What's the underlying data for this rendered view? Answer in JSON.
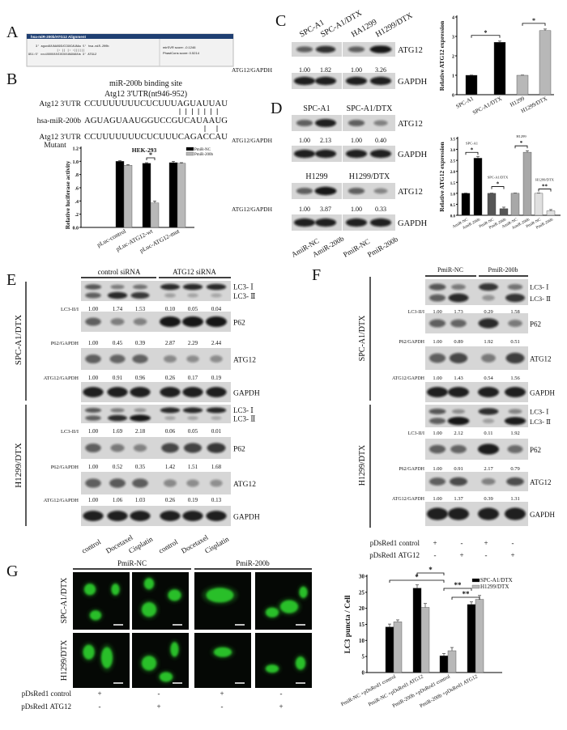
{
  "panel_a": {
    "letter": "A",
    "header": "hsa-miR-200b/ATG12 Alignment",
    "line1": "3'  agucAUUAAUGGUCCGUCAUAAu 5'  hsa-miR-200b",
    "line2": "|: || |:   :||||||",
    "line3": "951:5' ccuUUUUUUUCUCUUUAGUAUUa 3'  ATG12",
    "mirsvr": "mirSVR score:    -0.1246",
    "phastcons": "PhastCons score: 0.5214",
    "header_color": "#1f3f72"
  },
  "panel_b": {
    "letter": "B",
    "title1": "miR-200b binding site",
    "title2": "Atg12 3'UTR(nt946-952)",
    "rows": [
      {
        "label": "Atg12 3'UTR",
        "seq": "CCUUUUUUUCUCUUUAGUAUUAU"
      },
      {
        "label": "hsa-miR-200b",
        "seq": "AGUAGUAAUGGUCCGUCAUAAUG"
      },
      {
        "label": "Atg12 3'UTR",
        "seq": "CCUUUUUUUCUCUUUCAGACCAU"
      }
    ],
    "mutant_label": "Mutant"
  },
  "panel_c": {
    "letter": "C",
    "lanes": [
      "SPC-A1",
      "SPC-A1/DTX",
      "HA1299",
      "H1299/DTX"
    ],
    "rows": [
      {
        "label": "ATG12"
      },
      {
        "label": "ATG12/GAPDH",
        "values": [
          "1.00",
          "1.82",
          "1.00",
          "3.26"
        ]
      },
      {
        "label": "GAPDH"
      }
    ]
  },
  "panel_d": {
    "letter": "D",
    "top": {
      "groups": [
        "SPC-A1",
        "SPC-A1/DTX"
      ],
      "rows": [
        {
          "label": "ATG12"
        },
        {
          "label": "ATG12/GAPDH",
          "values": [
            "1.00",
            "2.13",
            "1.00",
            "0.40"
          ]
        },
        {
          "label": "GAPDH"
        }
      ]
    },
    "bottom": {
      "groups": [
        "H1299",
        "H1299/DTX"
      ],
      "rows": [
        {
          "label": "ATG12"
        },
        {
          "label": "ATG12/GAPDH",
          "values": [
            "1.00",
            "3.87",
            "1.00",
            "0.33"
          ]
        },
        {
          "label": "GAPDH"
        }
      ]
    },
    "lanes": [
      "AmiR-NC",
      "AmiR-200b",
      "PmiR-NC",
      "PmiR-200b"
    ]
  },
  "panel_e": {
    "letter": "E",
    "groups": [
      "control siRNA",
      "ATG12 siRNA"
    ],
    "cell_lines": [
      "SPC-A1/DTX",
      "H1299/DTX"
    ],
    "sections": [
      {
        "rows": [
          {
            "labels": [
              "LC3- Ⅰ",
              "LC3- Ⅱ"
            ]
          },
          {
            "label": "LC3-II/I",
            "values": [
              "1.00",
              "1.74",
              "1.53",
              "0.10",
              "0.05",
              "0.04"
            ]
          },
          {
            "label": "P62"
          },
          {
            "label": "P62/GAPDH",
            "values": [
              "1.00",
              "0.45",
              "0.39",
              "2.87",
              "2.29",
              "2.44"
            ]
          },
          {
            "label": "ATG12"
          },
          {
            "label": "ATG12/GAPDH",
            "values": [
              "1.00",
              "0.91",
              "0.96",
              "0.26",
              "0.17",
              "0.19"
            ]
          },
          {
            "label": "GAPDH"
          }
        ]
      },
      {
        "rows": [
          {
            "labels": [
              "LC3- Ⅰ",
              "LC3- Ⅱ"
            ]
          },
          {
            "label": "LC3-II/I",
            "values": [
              "1.00",
              "1.69",
              "2.18",
              "0.06",
              "0.05",
              "0.01"
            ]
          },
          {
            "label": "P62"
          },
          {
            "label": "P62/GAPDH",
            "values": [
              "1.00",
              "0.52",
              "0.35",
              "1.42",
              "1.51",
              "1.68"
            ]
          },
          {
            "label": "ATG12"
          },
          {
            "label": "ATG12/GAPDH",
            "values": [
              "1.00",
              "1.06",
              "1.03",
              "0.26",
              "0.19",
              "0.13"
            ]
          },
          {
            "label": "GAPDH"
          }
        ]
      }
    ],
    "lanes": [
      "control",
      "Docetaxel",
      "Cisplatin",
      "control",
      "Docetaxel",
      "Cisplatin"
    ]
  },
  "panel_f": {
    "letter": "F",
    "groups": [
      "PmiR-NC",
      "PmiR-200b"
    ],
    "cell_lines": [
      "SPC-A1/DTX",
      "H1299/DTX"
    ],
    "sections": [
      {
        "rows": [
          {
            "labels": [
              "LC3- Ⅰ",
              "LC3- Ⅱ"
            ]
          },
          {
            "label": "LC3-II/I",
            "values": [
              "1.00",
              "1.73",
              "0.29",
              "1.58"
            ]
          },
          {
            "label": "P62"
          },
          {
            "label": "P62/GAPDH",
            "values": [
              "1.00",
              "0.89",
              "1.92",
              "0.51"
            ]
          },
          {
            "label": "ATG12"
          },
          {
            "label": "ATG12/GAPDH",
            "values": [
              "1.00",
              "1.43",
              "0.54",
              "1.56"
            ]
          },
          {
            "label": "GAPDH"
          }
        ]
      },
      {
        "rows": [
          {
            "labels": [
              "LC3- Ⅰ",
              "LC3- Ⅱ"
            ]
          },
          {
            "label": "LC3-II/I",
            "values": [
              "1.00",
              "2.12",
              "0.11",
              "1.92"
            ]
          },
          {
            "label": "P62"
          },
          {
            "label": "P62/GAPDH",
            "values": [
              "1.00",
              "0.91",
              "2.17",
              "0.79"
            ]
          },
          {
            "label": "ATG12"
          },
          {
            "label": "ATG12/GAPDH",
            "values": [
              "1.00",
              "1.37",
              "0.39",
              "1.31"
            ]
          },
          {
            "label": "GAPDH"
          }
        ]
      }
    ],
    "treatments": [
      {
        "label": "pDsRed1 control",
        "marks": [
          "+",
          "-",
          "+",
          "-"
        ]
      },
      {
        "label": "pDsRed1 ATG12",
        "marks": [
          "-",
          "+",
          "-",
          "+"
        ]
      }
    ]
  },
  "panel_g": {
    "letter": "G",
    "groups": [
      "PmiR-NC",
      "PmiR-200b"
    ],
    "cell_lines": [
      "SPC-A1/DTX",
      "H1299/DTX"
    ],
    "image_color": "#2fd62f",
    "treatments": [
      {
        "label": "pDsRed1 control",
        "marks": [
          "+",
          "-",
          "+",
          "-"
        ]
      },
      {
        "label": "pDsRed1 ATG12",
        "marks": [
          "-",
          "+",
          "-",
          "+"
        ]
      }
    ]
  },
  "chart_data": [
    {
      "id": "B",
      "type": "bar",
      "title": "HEK-293",
      "ylabel": "Relative luciferase activity",
      "ylim": [
        0,
        1.2
      ],
      "yticks": [
        [
          0,
          "0.0"
        ],
        [
          0.2,
          ".2"
        ],
        [
          0.4,
          ".4"
        ],
        [
          0.6,
          ".6"
        ],
        [
          0.8,
          ".8"
        ],
        [
          1.0,
          "1.0"
        ],
        [
          1.2,
          "1.2"
        ]
      ],
      "categories": [
        "pLuc-control",
        "pLuc-ATG12-wt",
        "pLuc-ATG12-mut"
      ],
      "series": [
        {
          "name": "PmiR-NC",
          "color": "#000000",
          "values": [
            1.0,
            0.97,
            0.98
          ],
          "errors": [
            0.01,
            0.01,
            0.02
          ]
        },
        {
          "name": "PmiR-200b",
          "color": "#b8b8b8",
          "values": [
            0.94,
            0.37,
            0.97
          ],
          "errors": [
            0.01,
            0.03,
            0.01
          ]
        }
      ],
      "annotations": [
        {
          "label": "*",
          "bars": [
            [
              0,
              1
            ],
            [
              1,
              1
            ]
          ]
        }
      ],
      "legend": "top-right",
      "grid": false
    },
    {
      "id": "C",
      "type": "bar",
      "ylabel": "Relative ATG12 expression",
      "ylim": [
        0,
        4
      ],
      "yticks": [
        [
          0,
          "0"
        ],
        [
          1,
          "1"
        ],
        [
          2,
          "2"
        ],
        [
          3,
          "3"
        ],
        [
          4,
          "4"
        ]
      ],
      "categories": [
        "SPC-A1",
        "SPC-A1/DTX",
        "H1299",
        "H1299/DTX"
      ],
      "series": [
        {
          "values": [
            1.0,
            2.7,
            1.0,
            3.3
          ],
          "errors": [
            0.01,
            0.06,
            0.01,
            0.08
          ],
          "colors": [
            "#000000",
            "#000000",
            "#b8b8b8",
            "#b8b8b8"
          ]
        }
      ],
      "annotations": [
        {
          "label": "*",
          "bars": [
            [
              0,
              0
            ],
            [
              0,
              1
            ]
          ]
        },
        {
          "label": "*",
          "bars": [
            [
              0,
              2
            ],
            [
              0,
              3
            ]
          ]
        }
      ],
      "grid": false
    },
    {
      "id": "D",
      "type": "bar",
      "ylabel": "Relative ATG12 expression",
      "ylim": [
        0,
        3.5
      ],
      "yticks": [
        [
          0,
          "0.0"
        ],
        [
          0.5,
          "0.5"
        ],
        [
          1.0,
          "1.0"
        ],
        [
          1.5,
          "1.5"
        ],
        [
          2.0,
          "2.0"
        ],
        [
          2.5,
          "2.5"
        ],
        [
          3.0,
          "3.0"
        ],
        [
          3.5,
          "3.5"
        ]
      ],
      "categories": [
        "AmiR-NC",
        "AmiR-200b",
        "PmiR-NC",
        "PmiR-200b",
        "AmiR-NC",
        "AmiR-200b",
        "PmiR-NC",
        "PmiR-200b"
      ],
      "group_labels": [
        "SPC-A1",
        "SPC-A1/DTX",
        "H1299",
        "H1299/DTX"
      ],
      "series": [
        {
          "values": [
            1.0,
            2.6,
            1.0,
            0.3,
            1.0,
            2.87,
            1.0,
            0.2
          ],
          "errors": [
            0.01,
            0.08,
            0.01,
            0.07,
            0.01,
            0.07,
            0.01,
            0.06
          ],
          "colors": [
            "#000000",
            "#000000",
            "#555555",
            "#555555",
            "#a8a8a8",
            "#a8a8a8",
            "#e0e0e0",
            "#e0e0e0"
          ]
        }
      ],
      "annotations": [
        {
          "label": "*",
          "bars": [
            [
              0,
              0
            ],
            [
              0,
              1
            ]
          ]
        },
        {
          "label": "*",
          "bars": [
            [
              0,
              2
            ],
            [
              0,
              3
            ]
          ]
        },
        {
          "label": "*",
          "bars": [
            [
              0,
              4
            ],
            [
              0,
              5
            ]
          ]
        },
        {
          "label": "**",
          "bars": [
            [
              0,
              6
            ],
            [
              0,
              7
            ]
          ]
        }
      ],
      "grid": false
    },
    {
      "id": "G",
      "type": "bar",
      "ylabel": "LC3 puncta / Cell",
      "ylim": [
        0,
        30
      ],
      "yticks": [
        [
          0,
          "0"
        ],
        [
          5,
          "5"
        ],
        [
          10,
          "10"
        ],
        [
          15,
          "15"
        ],
        [
          20,
          "20"
        ],
        [
          25,
          "25"
        ],
        [
          30,
          "30"
        ]
      ],
      "categories": [
        "PmiR-NC +pDsRed1 control",
        "PmiR-NC +pDsRed1 ATG12",
        "PmiR-200b +pDsRed1 control",
        "PmiR-200b +pDsRed1 ATG12"
      ],
      "series": [
        {
          "name": "SPC-A1/DTX",
          "color": "#000000",
          "values": [
            14.2,
            26.3,
            5.2,
            21.2
          ],
          "errors": [
            0.9,
            1.0,
            0.7,
            0.8
          ]
        },
        {
          "name": "H1299/DTX",
          "color": "#b8b8b8",
          "values": [
            15.8,
            20.3,
            6.8,
            22.8
          ],
          "errors": [
            0.6,
            1.2,
            1.0,
            1.2
          ]
        }
      ],
      "annotations": [
        {
          "label": "*",
          "bars": [
            [
              0,
              1
            ],
            [
              0,
              2
            ]
          ]
        },
        {
          "label": "*",
          "bars": [
            [
              0,
              0
            ],
            [
              0,
              2
            ]
          ]
        },
        {
          "label": "**",
          "bars": [
            [
              0,
              2
            ],
            [
              0,
              3
            ]
          ]
        },
        {
          "label": "**",
          "bars": [
            [
              1,
              2
            ],
            [
              1,
              3
            ]
          ]
        }
      ],
      "legend": "top-right",
      "grid": false
    }
  ]
}
